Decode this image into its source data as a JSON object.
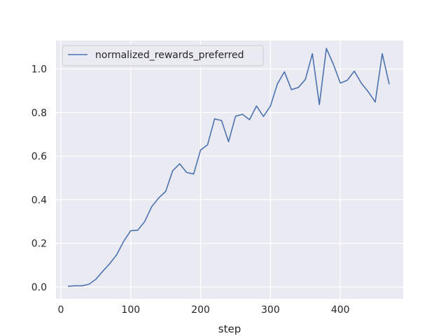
{
  "chart_data": {
    "type": "line",
    "title": "",
    "xlabel": "step",
    "ylabel": "",
    "xlim": [
      -7,
      490
    ],
    "ylim": [
      -0.055,
      1.13
    ],
    "xticks": [
      0,
      100,
      200,
      300,
      400
    ],
    "yticks": [
      0.0,
      0.2,
      0.4,
      0.6,
      0.8,
      1.0
    ],
    "xtick_labels": [
      "0",
      "100",
      "200",
      "300",
      "400"
    ],
    "ytick_labels": [
      "0.0",
      "0.2",
      "0.4",
      "0.6",
      "0.8",
      "1.0"
    ],
    "grid": true,
    "legend_position": "top-left",
    "colors": {
      "background": "#eaeaf2",
      "grid": "#ffffff",
      "line": "#4c72b0"
    },
    "series": [
      {
        "name": "normalized_rewards_preferred",
        "x": [
          10,
          20,
          30,
          40,
          50,
          60,
          70,
          80,
          90,
          100,
          110,
          120,
          130,
          140,
          150,
          160,
          170,
          180,
          190,
          200,
          210,
          220,
          230,
          240,
          250,
          260,
          270,
          280,
          290,
          300,
          310,
          320,
          330,
          340,
          350,
          360,
          370,
          380,
          390,
          400,
          410,
          420,
          430,
          440,
          450,
          460,
          470
        ],
        "y": [
          0.003,
          0.005,
          0.005,
          0.012,
          0.035,
          0.072,
          0.107,
          0.148,
          0.21,
          0.258,
          0.26,
          0.3,
          0.368,
          0.408,
          0.438,
          0.533,
          0.565,
          0.525,
          0.518,
          0.628,
          0.652,
          0.771,
          0.763,
          0.666,
          0.783,
          0.792,
          0.767,
          0.83,
          0.782,
          0.83,
          0.932,
          0.987,
          0.905,
          0.915,
          0.952,
          1.07,
          0.836,
          1.094,
          1.022,
          0.935,
          0.948,
          0.99,
          0.935,
          0.895,
          0.848,
          1.07,
          0.93
        ]
      }
    ]
  }
}
